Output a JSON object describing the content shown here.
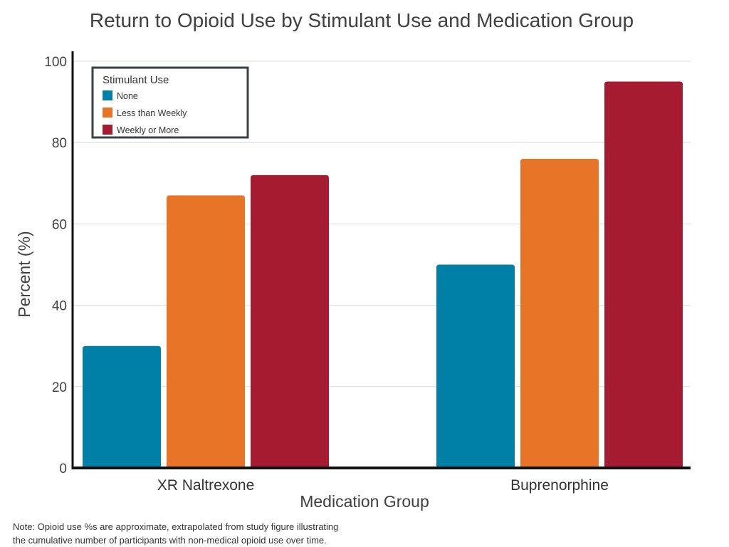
{
  "chart_data": {
    "type": "bar",
    "title": "Return to Opioid Use by Stimulant Use and Medication Group",
    "xlabel": "Medication Group",
    "ylabel": "Percent (%)",
    "ylim": [
      0,
      100
    ],
    "yticks": [
      0,
      20,
      40,
      60,
      80,
      100
    ],
    "grid": true,
    "categories": [
      "XR Naltrexone",
      "Buprenorphine"
    ],
    "legend": {
      "title": "Stimulant Use",
      "placement": "top-left"
    },
    "series": [
      {
        "name": "None",
        "color": "#0080A7",
        "values": [
          30,
          50
        ]
      },
      {
        "name": "Less than Weekly",
        "color": "#E87427",
        "values": [
          67,
          76
        ]
      },
      {
        "name": "Weekly or More",
        "color": "#A51C30",
        "values": [
          72,
          95
        ]
      }
    ]
  },
  "note": {
    "line1": "Note: Opioid use %s are approximate, extrapolated from study figure illustrating",
    "line2": "the cumulative number of participants with non-medical opioid use over time."
  }
}
